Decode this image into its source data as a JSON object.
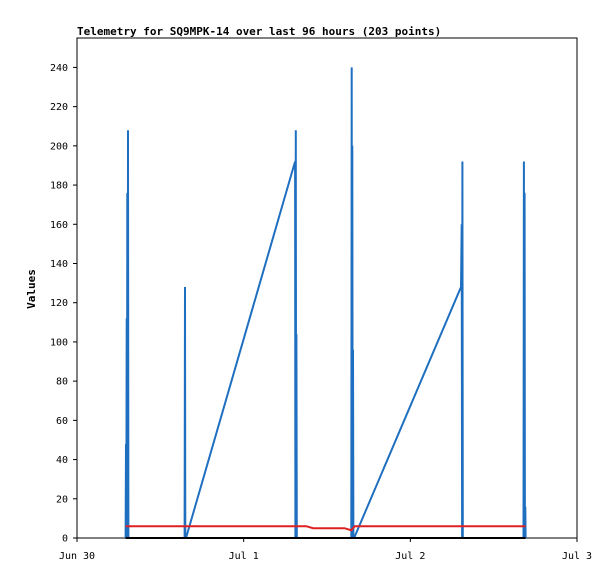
{
  "chart_data": {
    "type": "line",
    "title": "Telemetry for SQ9MPK-14 over last 96 hours (203 points)",
    "xlabel": "",
    "ylabel": "Values",
    "x_ticks": [
      "Jun 30",
      "Jul 1",
      "Jul 2",
      "Jul 3"
    ],
    "xlim": [
      0,
      72
    ],
    "ylim": [
      0,
      255
    ],
    "y_ticks": [
      0,
      20,
      40,
      60,
      80,
      100,
      120,
      140,
      160,
      180,
      200,
      220,
      240
    ],
    "grid": false,
    "colors": {
      "blue": "#1f6fc0",
      "red": "#e02020",
      "black": "#000000"
    },
    "series": [
      {
        "color": "#1f6fc0",
        "points": [
          [
            7.0,
            0
          ],
          [
            7.05,
            48
          ],
          [
            7.1,
            0
          ],
          [
            7.15,
            112
          ],
          [
            7.2,
            0
          ],
          [
            7.25,
            176
          ],
          [
            7.3,
            0
          ],
          [
            7.35,
            208
          ],
          [
            7.4,
            0
          ],
          [
            15.5,
            0
          ],
          [
            15.55,
            128
          ],
          [
            15.6,
            0
          ],
          [
            15.7,
            0
          ],
          [
            31.4,
            192
          ],
          [
            31.45,
            0
          ],
          [
            31.5,
            208
          ],
          [
            31.55,
            0
          ],
          [
            31.6,
            104
          ],
          [
            31.65,
            0
          ],
          [
            39.5,
            0
          ],
          [
            39.55,
            240
          ],
          [
            39.6,
            0
          ],
          [
            39.65,
            200
          ],
          [
            39.7,
            0
          ],
          [
            39.75,
            96
          ],
          [
            39.8,
            0
          ],
          [
            39.9,
            0
          ],
          [
            55.3,
            128
          ],
          [
            55.4,
            160
          ],
          [
            55.45,
            0
          ],
          [
            55.5,
            192
          ],
          [
            55.55,
            0
          ],
          [
            64.3,
            0
          ],
          [
            64.35,
            192
          ],
          [
            64.4,
            0
          ],
          [
            64.45,
            176
          ],
          [
            64.5,
            0
          ],
          [
            64.55,
            16
          ],
          [
            64.6,
            0
          ]
        ]
      },
      {
        "color": "#e02020",
        "points": [
          [
            7.0,
            6
          ],
          [
            31.5,
            6
          ],
          [
            33.0,
            6
          ],
          [
            34.0,
            5
          ],
          [
            38.5,
            5
          ],
          [
            39.5,
            4
          ],
          [
            40.0,
            6
          ],
          [
            64.6,
            6
          ]
        ]
      },
      {
        "color": "#000000",
        "points": [
          [
            7.0,
            0
          ],
          [
            64.6,
            0
          ]
        ]
      }
    ]
  }
}
